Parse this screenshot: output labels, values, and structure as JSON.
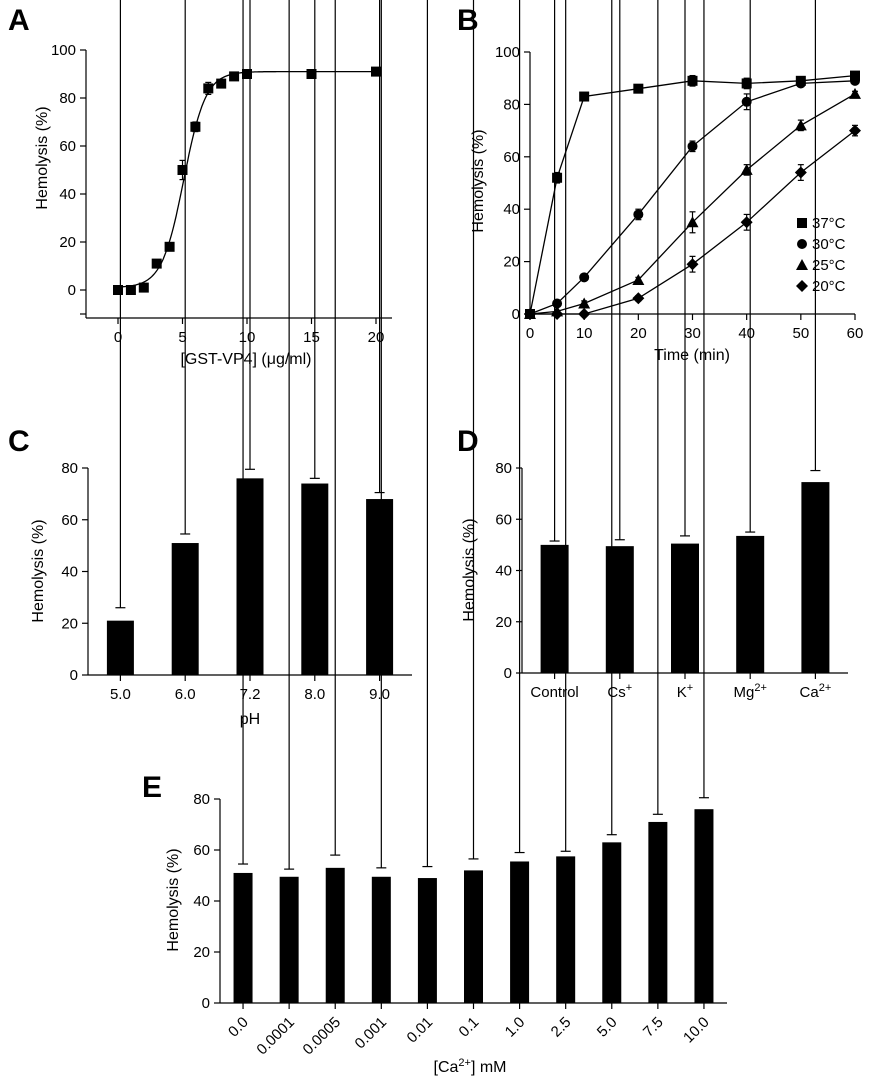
{
  "colors": {
    "ink": "#000000",
    "background": "#ffffff"
  },
  "chart_data": [
    {
      "panel": "A",
      "type": "scatter",
      "xlabel": "[GST-VP4] (μg/ml)",
      "ylabel": "Hemolysis (%)",
      "xlim": [
        -2,
        20
      ],
      "ylim": [
        -10,
        100
      ],
      "xticks": [
        0,
        5,
        10,
        15,
        20
      ],
      "yticks": [
        0,
        20,
        40,
        60,
        80,
        100
      ],
      "marker": "square",
      "fit_curve": "sigmoid",
      "points": [
        {
          "x": 0,
          "y": 0,
          "err": 0
        },
        {
          "x": 1,
          "y": 0,
          "err": 0
        },
        {
          "x": 2,
          "y": 1,
          "err": 0
        },
        {
          "x": 3,
          "y": 11,
          "err": 0
        },
        {
          "x": 4,
          "y": 18,
          "err": 1
        },
        {
          "x": 5,
          "y": 50,
          "err": 4
        },
        {
          "x": 6,
          "y": 68,
          "err": 2
        },
        {
          "x": 7,
          "y": 84,
          "err": 2.5
        },
        {
          "x": 8,
          "y": 86,
          "err": 1
        },
        {
          "x": 9,
          "y": 89,
          "err": 0.5
        },
        {
          "x": 10,
          "y": 90,
          "err": 0
        },
        {
          "x": 15,
          "y": 90,
          "err": 0
        },
        {
          "x": 20,
          "y": 91,
          "err": 0
        }
      ]
    },
    {
      "panel": "B",
      "type": "line",
      "xlabel": "Time (min)",
      "ylabel": "Hemolysis (%)",
      "xlim": [
        0,
        60
      ],
      "ylim": [
        0,
        100
      ],
      "xticks": [
        0,
        10,
        20,
        30,
        40,
        50,
        60
      ],
      "yticks": [
        0,
        20,
        40,
        60,
        80,
        100
      ],
      "legend_position": "right",
      "x": [
        0,
        5,
        10,
        20,
        30,
        40,
        50,
        60
      ],
      "series": [
        {
          "name": "37°C",
          "marker": "square",
          "values": [
            0,
            52,
            83,
            86,
            89,
            88,
            89,
            91
          ],
          "err": [
            0,
            2,
            1,
            1,
            2,
            2,
            1,
            1
          ]
        },
        {
          "name": "30°C",
          "marker": "circle",
          "values": [
            0,
            4,
            14,
            38,
            64,
            81,
            88,
            89
          ],
          "err": [
            0,
            1,
            1,
            2,
            2,
            3,
            1,
            1
          ]
        },
        {
          "name": "25°C",
          "marker": "triangle",
          "values": [
            0,
            1,
            4,
            13,
            35,
            55,
            72,
            84
          ],
          "err": [
            0,
            0,
            1,
            1,
            4,
            2,
            2,
            1
          ]
        },
        {
          "name": "20°C",
          "marker": "diamond",
          "values": [
            0,
            0,
            0,
            6,
            19,
            35,
            54,
            70
          ],
          "err": [
            0,
            0,
            0,
            1,
            3,
            3,
            3,
            2
          ]
        }
      ]
    },
    {
      "panel": "C",
      "type": "bar",
      "xlabel": "pH",
      "ylabel": "Hemolysis (%)",
      "ylim": [
        0,
        80
      ],
      "yticks": [
        0,
        20,
        40,
        60,
        80
      ],
      "categories": [
        "5.0",
        "6.0",
        "7.2",
        "8.0",
        "9.0"
      ],
      "values": [
        21,
        51,
        76,
        74,
        68
      ],
      "err": [
        5,
        3.5,
        3.5,
        2,
        2.5
      ]
    },
    {
      "panel": "D",
      "type": "bar",
      "xlabel": "",
      "ylabel": "Hemolysis (%)",
      "ylim": [
        0,
        80
      ],
      "yticks": [
        0,
        20,
        40,
        60,
        80
      ],
      "categories": [
        {
          "base": "Control",
          "sup": ""
        },
        {
          "base": "Cs",
          "sup": "+"
        },
        {
          "base": "K",
          "sup": "+"
        },
        {
          "base": "Mg",
          "sup": "2+"
        },
        {
          "base": "Ca",
          "sup": "2+"
        }
      ],
      "values": [
        50,
        49.5,
        50.5,
        53.5,
        74.5
      ],
      "err": [
        1.5,
        2.5,
        3,
        1.5,
        4.5
      ]
    },
    {
      "panel": "E",
      "type": "bar",
      "xlabel": "[Ca2+] mM",
      "ylabel": "Hemolysis (%)",
      "ylim": [
        0,
        80
      ],
      "yticks": [
        0,
        20,
        40,
        60,
        80
      ],
      "categories": [
        "0.0",
        "0.0001",
        "0.0005",
        "0.001",
        "0.01",
        "0.1",
        "1.0",
        "2.5",
        "5.0",
        "7.5",
        "10.0"
      ],
      "values": [
        51,
        49.5,
        53,
        49.5,
        49,
        52,
        55.5,
        57.5,
        63,
        71,
        76
      ],
      "err": [
        3.5,
        3,
        5,
        3.5,
        4.5,
        4.5,
        3.5,
        2,
        3,
        3,
        4.5
      ]
    }
  ]
}
